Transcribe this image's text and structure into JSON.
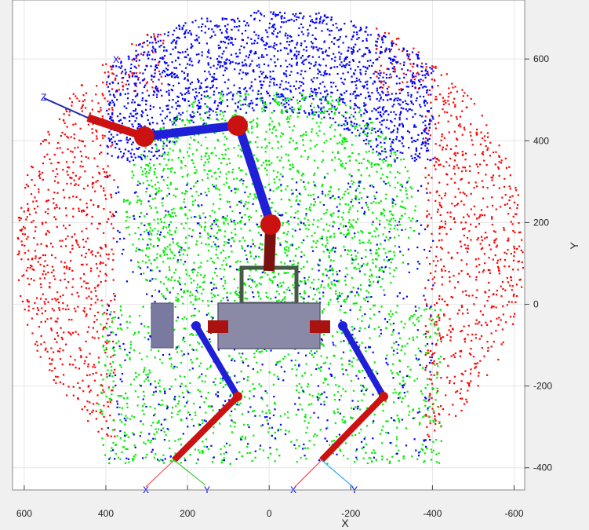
{
  "chart_data": {
    "type": "scatter",
    "title": "",
    "xlabel": "X",
    "ylabel": "Y",
    "xlim": [
      620,
      -620
    ],
    "ylim": [
      -450,
      720
    ],
    "x_reversed": true,
    "grid": true,
    "xticks": [
      {
        "value": 600,
        "label": "600"
      },
      {
        "value": 400,
        "label": "400"
      },
      {
        "value": 200,
        "label": "200"
      },
      {
        "value": 0,
        "label": "0"
      },
      {
        "value": -200,
        "label": "-200"
      },
      {
        "value": -400,
        "label": "-400"
      },
      {
        "value": -600,
        "label": "-600"
      }
    ],
    "yticks": [
      {
        "value": 600,
        "label": "600"
      },
      {
        "value": 400,
        "label": "400"
      },
      {
        "value": 200,
        "label": "200"
      },
      {
        "value": 0,
        "label": "0"
      },
      {
        "value": -200,
        "label": "-200"
      },
      {
        "value": -400,
        "label": "-400"
      }
    ],
    "series": [
      {
        "color": "#ff0000",
        "region": "outer-shell"
      },
      {
        "color": "#0000ff",
        "region": "upper-cap"
      },
      {
        "color": "#00ee00",
        "region": "inner-core"
      }
    ],
    "frame_labels": [
      "Z",
      "X",
      "X",
      "Y",
      "X",
      "Y"
    ],
    "robot_colors": {
      "link": "#1f1fd8",
      "joint": "#cc1111",
      "base": "#8a8aa6",
      "frame": "#4a6a4a"
    }
  }
}
